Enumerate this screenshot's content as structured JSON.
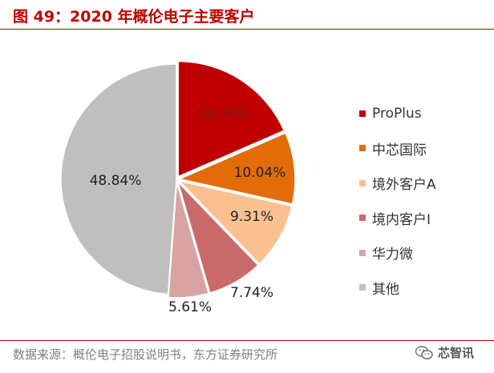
{
  "title": "图 49：2020 年概伦电子主要客户",
  "source": "数据来源：概伦电子招股说明书，东方证券研究所",
  "watermark": "芯智讯",
  "chart_data": {
    "type": "pie",
    "start_angle_deg": 0,
    "direction": "clockwise",
    "slices": [
      {
        "name": "ProPlus",
        "value": 18.46,
        "label": "18.46%",
        "color": "#c00000"
      },
      {
        "name": "中芯国际",
        "value": 10.04,
        "label": "10.04%",
        "color": "#e36c09"
      },
      {
        "name": "境外客户A",
        "value": 9.31,
        "label": "9.31%",
        "color": "#fac090"
      },
      {
        "name": "境内客户I",
        "value": 7.74,
        "label": "7.74%",
        "color": "#c96b6b"
      },
      {
        "name": "华力微",
        "value": 5.61,
        "label": "5.61%",
        "color": "#d9a3a3"
      },
      {
        "name": "其他",
        "value": 48.84,
        "label": "48.84%",
        "color": "#bfbfbf"
      }
    ],
    "legend_position": "right"
  }
}
